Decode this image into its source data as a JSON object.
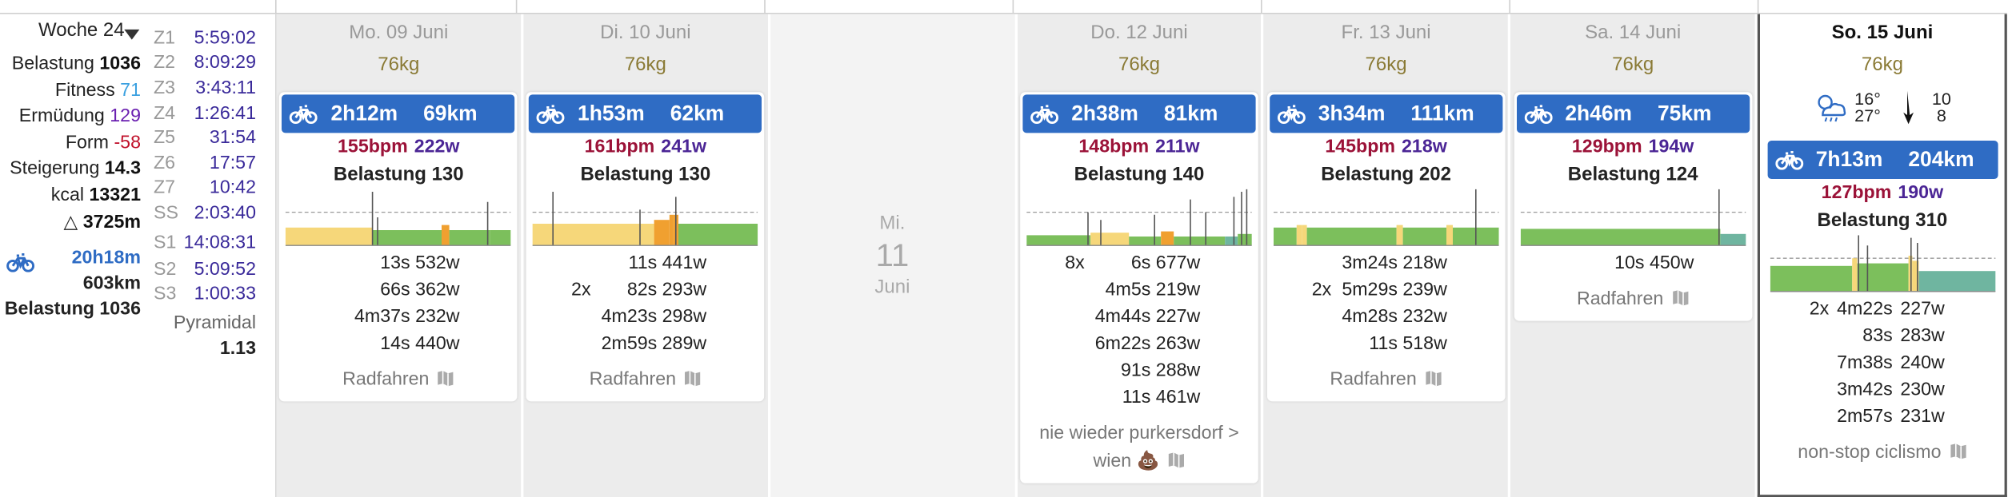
{
  "week": {
    "label": "Woche 24",
    "stats": [
      {
        "label": "Belastung",
        "value": "1036"
      },
      {
        "label": "Fitness",
        "value": "71"
      },
      {
        "label": "Ermüdung",
        "value": "129"
      },
      {
        "label": "Form",
        "value": "-58"
      },
      {
        "label": "Steigerung",
        "value": "14.3"
      },
      {
        "label": "kcal",
        "value": "13321"
      },
      {
        "label": "△",
        "value": "3725m"
      }
    ],
    "ride": {
      "time": "20h18m",
      "distance": "603km",
      "load": "Belastung 1036"
    },
    "zones": [
      {
        "label": "Z1",
        "value": "5:59:02"
      },
      {
        "label": "Z2",
        "value": "8:09:29"
      },
      {
        "label": "Z3",
        "value": "3:43:11"
      },
      {
        "label": "Z4",
        "value": "1:26:41"
      },
      {
        "label": "Z5",
        "value": "31:54"
      },
      {
        "label": "Z6",
        "value": "17:57"
      },
      {
        "label": "Z7",
        "value": "10:42"
      },
      {
        "label": "SS",
        "value": "2:03:40"
      },
      {
        "label": "S1",
        "value": "14:08:31"
      },
      {
        "label": "S2",
        "value": "5:09:52"
      },
      {
        "label": "S3",
        "value": "1:00:33"
      }
    ],
    "pattern": "Pyramidal",
    "pattern_value": "1.13"
  },
  "days": [
    {
      "date": "Mo. 09 Juni",
      "weight": "76kg",
      "workouts": [
        {
          "duration": "2h12m",
          "distance": "69km",
          "heart_rate": "155bpm",
          "power": "222w",
          "load": "Belastung 130",
          "intervals": [
            {
              "duration": "13s",
              "power": "532w"
            },
            {
              "duration": "66s",
              "power": "362w"
            },
            {
              "duration": "4m37s",
              "power": "232w"
            },
            {
              "duration": "14s",
              "power": "440w"
            }
          ],
          "name": "Radfahren"
        }
      ]
    },
    {
      "date": "Di. 10 Juni",
      "weight": "76kg",
      "workouts": [
        {
          "duration": "1h53m",
          "distance": "62km",
          "heart_rate": "161bpm",
          "power": "241w",
          "load": "Belastung 130",
          "intervals": [
            {
              "duration": "11s",
              "power": "441w"
            },
            {
              "count": "2x",
              "duration": "82s",
              "power": "293w"
            },
            {
              "duration": "4m23s",
              "power": "298w"
            },
            {
              "duration": "2m59s",
              "power": "289w"
            }
          ],
          "name": "Radfahren"
        }
      ]
    },
    {
      "weekday": "Mi.",
      "day": "11",
      "month": "Juni"
    },
    {
      "date": "Do. 12 Juni",
      "weight": "76kg",
      "workouts": [
        {
          "duration": "2h38m",
          "distance": "81km",
          "heart_rate": "148bpm",
          "power": "211w",
          "load": "Belastung 140",
          "intervals": [
            {
              "count": "8x",
              "duration": "6s",
              "power": "677w"
            },
            {
              "duration": "4m5s",
              "power": "219w"
            },
            {
              "duration": "4m44s",
              "power": "227w"
            },
            {
              "duration": "6m22s",
              "power": "263w"
            },
            {
              "duration": "91s",
              "power": "288w"
            },
            {
              "duration": "11s",
              "power": "461w"
            }
          ],
          "name": "nie wieder purkersdorf > wien 💩"
        }
      ]
    },
    {
      "date": "Fr. 13 Juni",
      "weight": "76kg",
      "workouts": [
        {
          "duration": "3h34m",
          "distance": "111km",
          "heart_rate": "145bpm",
          "power": "218w",
          "load": "Belastung 202",
          "intervals": [
            {
              "duration": "3m24s",
              "power": "218w"
            },
            {
              "count": "2x",
              "duration": "5m29s",
              "power": "239w"
            },
            {
              "duration": "4m28s",
              "power": "232w"
            },
            {
              "duration": "11s",
              "power": "518w"
            }
          ],
          "name": "Radfahren"
        }
      ]
    },
    {
      "date": "Sa. 14 Juni",
      "weight": "76kg",
      "workouts": [
        {
          "duration": "2h46m",
          "distance": "75km",
          "heart_rate": "129bpm",
          "power": "194w",
          "load": "Belastung 124",
          "intervals": [
            {
              "duration": "10s",
              "power": "450w"
            }
          ],
          "name": "Radfahren"
        }
      ]
    },
    {
      "date": "So. 15 Juni",
      "weight": "76kg",
      "selected": true,
      "weather": {
        "low": "16°",
        "high": "27°",
        "wind": "10",
        "wind_gust": "8"
      },
      "workouts": [
        {
          "duration": "7h13m",
          "distance": "204km",
          "heart_rate": "127bpm",
          "power": "190w",
          "load": "Belastung 310",
          "intervals": [
            {
              "count": "2x",
              "duration": "4m22s",
              "power": "227w"
            },
            {
              "duration": "83s",
              "power": "283w"
            },
            {
              "duration": "7m38s",
              "power": "240w"
            },
            {
              "duration": "3m42s",
              "power": "230w"
            },
            {
              "duration": "2m57s",
              "power": "231w"
            }
          ],
          "name": "non-stop ciclismo"
        }
      ]
    }
  ]
}
